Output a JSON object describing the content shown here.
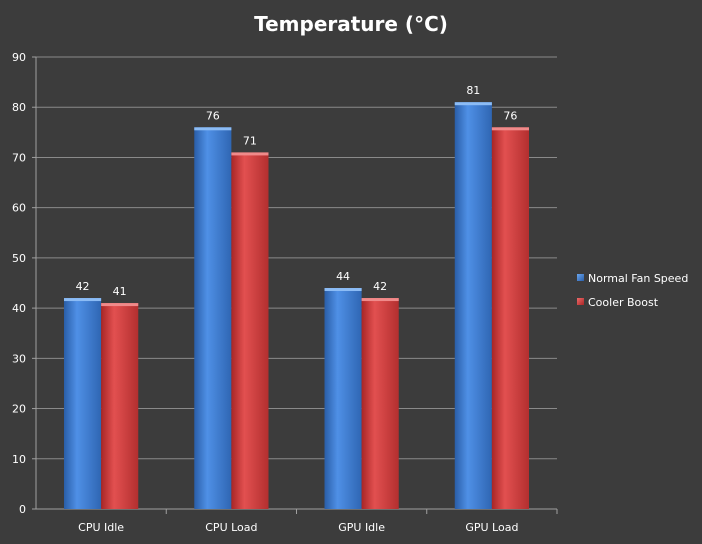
{
  "chart_data": {
    "type": "bar",
    "title": "Temperature (°C)",
    "xlabel": "",
    "ylabel": "",
    "categories": [
      "CPU Idle",
      "CPU Load",
      "GPU Idle",
      "GPU Load"
    ],
    "series": [
      {
        "name": "Normal Fan Speed",
        "values": [
          42,
          76,
          44,
          81
        ],
        "color": "#3f7fd6"
      },
      {
        "name": "Cooler Boost",
        "values": [
          41,
          71,
          42,
          76
        ],
        "color": "#d23d3d"
      }
    ],
    "ylim": [
      0,
      90
    ],
    "yticks": [
      0,
      10,
      20,
      30,
      40,
      50,
      60,
      70,
      80,
      90
    ],
    "grid": true,
    "legend": "right",
    "data_labels": true
  },
  "colors": {
    "background": "#3c3c3c",
    "gridline": "#8a8a8a",
    "axis": "#a0a0a0",
    "text": "#ffffff"
  }
}
